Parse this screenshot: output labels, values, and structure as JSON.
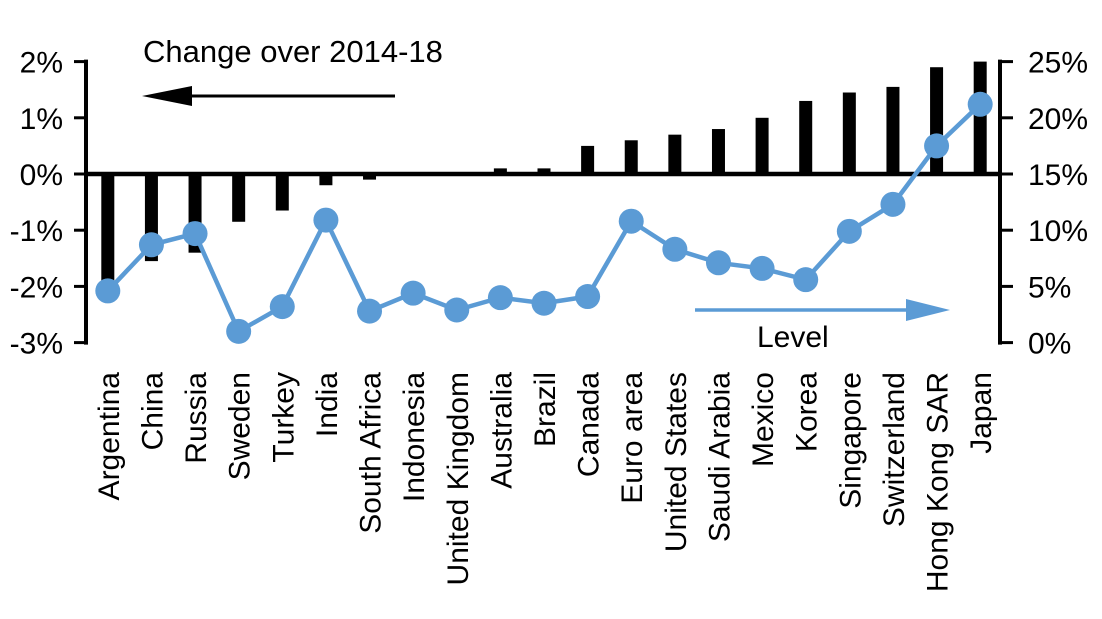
{
  "colors": {
    "bar": "#000000",
    "line": "#5B9BD5",
    "background": "#FFFFFF",
    "text": "#000000"
  },
  "annotations": {
    "bar_series_label": "Change over 2014-18",
    "line_series_label": "Level",
    "bar_arrow_direction": "left",
    "line_arrow_direction": "right"
  },
  "chart_data": {
    "type": "bar",
    "combo": "bar-and-line-two-axes",
    "grid": false,
    "categories": [
      "Argentina",
      "China",
      "Russia",
      "Sweden",
      "Turkey",
      "India",
      "South Africa",
      "Indonesia",
      "United Kingdom",
      "Australia",
      "Brazil",
      "Canada",
      "Euro area",
      "United States",
      "Saudi Arabia",
      "Mexico",
      "Korea",
      "Singapore",
      "Switzerland",
      "Hong Kong SAR",
      "Japan"
    ],
    "series": [
      {
        "name": "Change over 2014-18",
        "type": "bar",
        "axis": "left",
        "unit": "%",
        "values": [
          -1.9,
          -1.55,
          -1.4,
          -0.85,
          -0.65,
          -0.2,
          -0.1,
          0.0,
          0.0,
          0.1,
          0.1,
          0.5,
          0.6,
          0.7,
          0.8,
          1.0,
          1.3,
          1.45,
          1.55,
          1.9,
          2.0
        ]
      },
      {
        "name": "Level",
        "type": "line",
        "axis": "right",
        "unit": "%",
        "values": [
          4.6,
          8.7,
          9.7,
          1.0,
          3.2,
          10.9,
          2.8,
          4.4,
          2.9,
          4.0,
          3.5,
          4.1,
          10.8,
          8.3,
          7.1,
          6.6,
          5.6,
          9.9,
          12.3,
          17.5,
          21.2
        ]
      }
    ],
    "left_axis": {
      "min": -3,
      "max": 2,
      "ticks": [
        2,
        1,
        0,
        -1,
        -2,
        -3
      ],
      "suffix": "%"
    },
    "right_axis": {
      "min": 0,
      "max": 25,
      "ticks": [
        25,
        20,
        15,
        10,
        5,
        0
      ],
      "suffix": "%"
    },
    "legend_position": "in-plot-annotations-with-arrows"
  }
}
